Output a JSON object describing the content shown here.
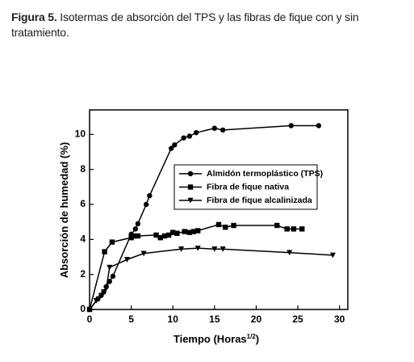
{
  "caption": {
    "label": "Figura 5.",
    "text": "Isotermas de absorción del TPS y las fibras de fique con y sin tratamiento."
  },
  "chart_data": {
    "type": "line",
    "xlabel": {
      "main": "Tiempo (Horas",
      "sup": "1/2",
      "end": ")"
    },
    "ylabel": "Absorción de humedad (%)",
    "xlim": [
      0,
      31
    ],
    "ylim": [
      0,
      11.4
    ],
    "xticks": [
      0,
      5,
      10,
      15,
      20,
      25,
      30
    ],
    "yticks": [
      0,
      2,
      4,
      6,
      8,
      10
    ],
    "series": [
      {
        "name": "Almidón termoplástico (TPS)",
        "color": "#000000",
        "marker": "circle",
        "x": [
          0,
          1,
          1.4,
          1.7,
          2,
          2.4,
          2.8,
          5,
          5.5,
          5.8,
          6.8,
          7.2,
          9.8,
          10.2,
          11.3,
          12,
          12.8,
          15,
          16,
          24.2,
          27.5
        ],
        "values": [
          0,
          0.6,
          0.8,
          1.0,
          1.3,
          1.6,
          1.9,
          4.3,
          4.6,
          4.9,
          6.0,
          6.5,
          9.2,
          9.4,
          9.8,
          9.9,
          10.1,
          10.35,
          10.25,
          10.5,
          10.5
        ]
      },
      {
        "name": "Fibra de fique nativa",
        "color": "#000000",
        "marker": "square",
        "x": [
          0,
          1.8,
          2.7,
          5,
          5.3,
          5.8,
          8,
          8.5,
          9,
          9.5,
          10,
          10.5,
          11.4,
          12,
          12.5,
          13,
          15.5,
          16.3,
          17.3,
          22.5,
          23.7,
          24.5,
          25.5
        ],
        "values": [
          0,
          3.3,
          3.85,
          4.1,
          4.2,
          4.2,
          4.25,
          4.1,
          4.2,
          4.25,
          4.4,
          4.35,
          4.45,
          4.4,
          4.45,
          4.5,
          4.85,
          4.7,
          4.8,
          4.8,
          4.6,
          4.6,
          4.6
        ]
      },
      {
        "name": "Fibra de fique alcalinizada",
        "color": "#000000",
        "marker": "triangle-down",
        "x": [
          0,
          0.8,
          1.1,
          1.4,
          1.7,
          2,
          2.4,
          4.5,
          6.5,
          11,
          13,
          15,
          16,
          24,
          29.2
        ],
        "values": [
          0,
          0.5,
          0.6,
          0.8,
          1.0,
          1.2,
          2.4,
          2.85,
          3.2,
          3.45,
          3.5,
          3.45,
          3.45,
          3.25,
          3.1
        ]
      }
    ]
  }
}
